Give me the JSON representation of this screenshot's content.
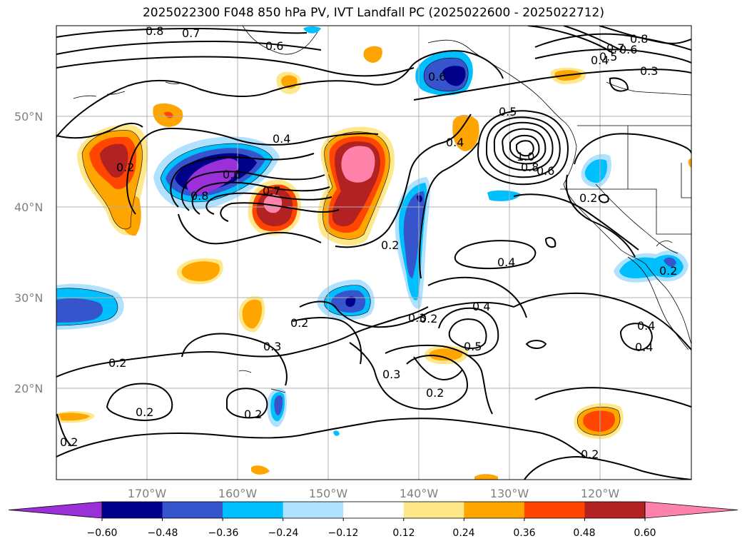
{
  "title": "2025022300 F048 850 hPa PV, IVT Landfall PC (2025022600 - 2025022712)",
  "lat_labels": [
    "50°N",
    "40°N",
    "30°N",
    "20°N"
  ],
  "lon_labels": [
    "170°W",
    "160°W",
    "150°W",
    "140°W",
    "130°W",
    "120°W"
  ],
  "colorbar": {
    "colors": [
      "#9b30d9",
      "#00008b",
      "#3655cc",
      "#00bfff",
      "#b0e2ff",
      "#ffffff",
      "#ffe88a",
      "#ffa500",
      "#ff4500",
      "#b22222",
      "#ff82ab"
    ],
    "tick_labels": [
      "−0.60",
      "−0.48",
      "−0.36",
      "−0.24",
      "−0.12",
      "0.12",
      "0.24",
      "0.36",
      "0.48",
      "0.60"
    ]
  },
  "contour_labels": [
    "0.8",
    "0.7",
    "0.6",
    "0.8",
    "0.7",
    "0.6",
    "0.5",
    "0.4",
    "0.3",
    "0.6",
    "0.5",
    "0.4",
    "1.0",
    "0.8",
    "0.6",
    "0.2",
    "0.4",
    "0.6",
    "0.8",
    "0.7",
    "0.2",
    "0.2",
    "0.4",
    "0.2",
    "0.4",
    "0.3",
    "0.4",
    "0.5",
    "0.3",
    "0.2",
    "0.2",
    "0.3",
    "0.2",
    "0.2",
    "0.2",
    "0.2",
    "0.4",
    "0.2",
    "0.2"
  ]
}
